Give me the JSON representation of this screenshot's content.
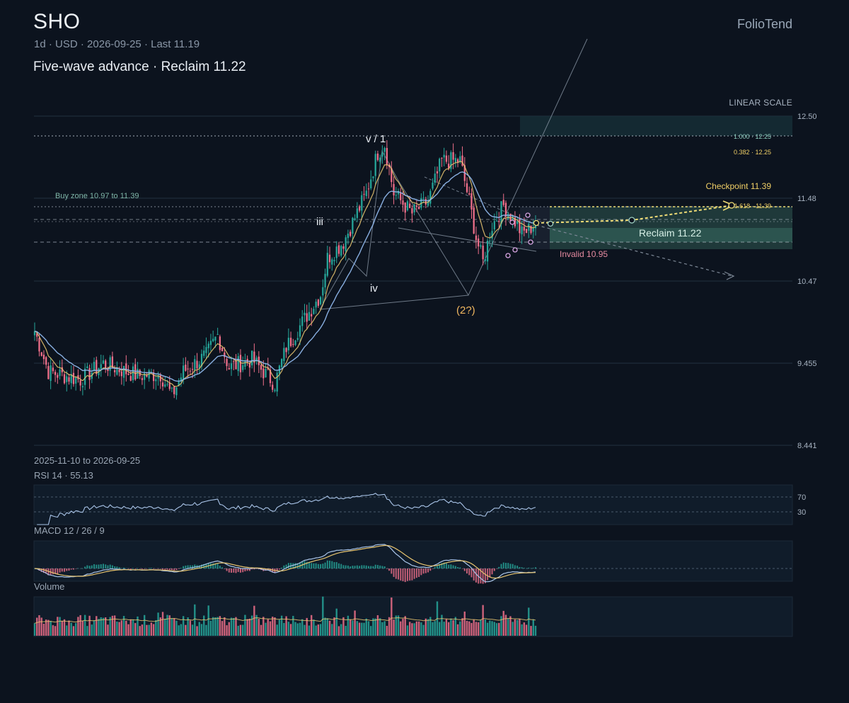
{
  "header": {
    "ticker": "SHO",
    "interval": "1d",
    "currency": "USD",
    "date": "2026-09-25",
    "last_label": "Last 11.19",
    "subtitle": "Five-wave advance · Reclaim 11.22",
    "brand": "FolioTend",
    "scale": "LINEAR SCALE"
  },
  "date_range": "2025-11-10 to 2026-09-25",
  "colors": {
    "background": "#0c131e",
    "up": "#26a69a",
    "down": "#ef6f8a",
    "ema_fast": "#e6c36f",
    "ema_slow": "#8fb6ea",
    "accent_yellow": "#f0dc76",
    "zone": "#2f5a52",
    "invalid": "#e58aa0"
  },
  "chart_data": {
    "type": "candlestick",
    "y_ticks": [
      "12.50",
      "11.48",
      "10.47",
      "9.455",
      "8.441"
    ],
    "ylim": [
      8.441,
      12.5
    ],
    "x_range": [
      "2025-11-10",
      "2026-09-25"
    ],
    "last": 11.19,
    "ema_series": [
      "fast EMA",
      "slow EMA"
    ],
    "overlay": {
      "buy_zone": {
        "label": "Buy zone 10.97 to 11.39",
        "low": 10.97,
        "high": 11.39
      },
      "checkpoint": {
        "label": "Checkpoint 11.39",
        "value": 11.39
      },
      "reclaim": {
        "label": "Reclaim 11.22",
        "value": 11.22
      },
      "invalid": {
        "label": "Invalid 10.95",
        "value": 10.95
      },
      "fib_levels": [
        {
          "label": "1.000 · 12.25",
          "value": 12.25
        },
        {
          "label": "0.382 · 12.25",
          "value": 12.25
        },
        {
          "label": "1.618 · 11.39",
          "value": 11.39
        }
      ],
      "wave_labels": [
        "v / 1",
        "iii",
        "iv",
        "(2?)"
      ]
    },
    "rsi": {
      "label": "RSI 14 · 55.13",
      "period": 14,
      "value": 55.13,
      "levels": [
        "70",
        "30"
      ]
    },
    "macd": {
      "label": "MACD 12 / 26 / 9"
    },
    "volume": {
      "label": "Volume"
    }
  }
}
